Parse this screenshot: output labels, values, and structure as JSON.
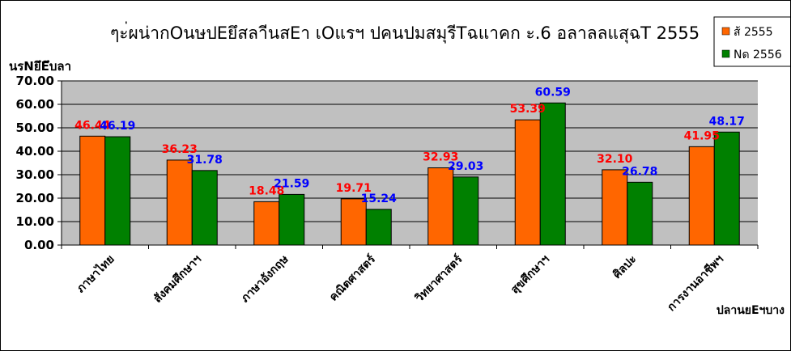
{
  "chart_data": {
    "type": "bar",
    "title": "ๆะ่ผน่ากOนษปEยึสลาีนสEา เOแรฯ ปคนปมสมุรีTฉแาคก ะ.6 อลาลลแสุฉT 2555",
    "ylabel": "นรNยึEึบลา",
    "xlabel": "ปลานยEฯบาง",
    "categories": [
      "ภาษาไทย",
      "สังคมศึกษาฯ",
      "ภาษาอังกฤษ",
      "คณิตศาสตร์",
      "วิทยาศาสตร์",
      "สุขศึกษาฯ",
      "ศิลปะ",
      "การงานอาชีพฯ"
    ],
    "series": [
      {
        "name": "ส้ 2555",
        "color": "#ff6600",
        "label_color": "#ff0000",
        "values": [
          46.44,
          36.23,
          18.48,
          19.71,
          32.93,
          53.39,
          32.1,
          41.95
        ]
      },
      {
        "name": "Nด 2556",
        "color": "#008000",
        "label_color": "#0000ff",
        "values": [
          46.19,
          31.78,
          21.59,
          15.24,
          29.03,
          60.59,
          26.78,
          48.17
        ]
      }
    ],
    "ylim": [
      0,
      70
    ],
    "yticks": [
      "0.00",
      "10.00",
      "20.00",
      "30.00",
      "40.00",
      "50.00",
      "60.00",
      "70.00"
    ],
    "plot_background": "#c0c0c0",
    "grid": true,
    "legend_position": "top-right"
  }
}
